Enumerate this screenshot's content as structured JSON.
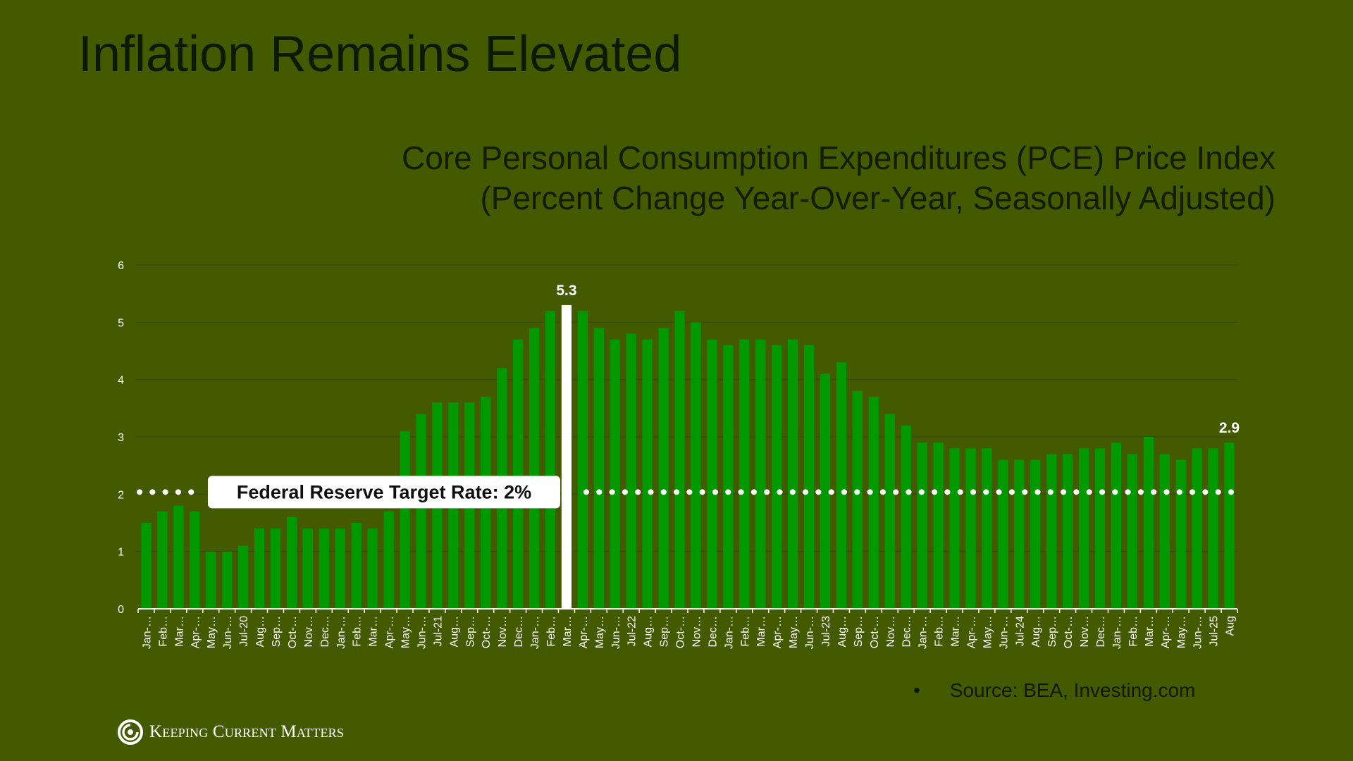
{
  "page": {
    "title": "Inflation Remains Elevated",
    "source_bullet": "•",
    "source_text": "Source: BEA, Investing.com",
    "logo_text": "Keeping Current Matters"
  },
  "chart_data": {
    "type": "bar",
    "title": "Core Personal Consumption Expenditures (PCE) Price Index",
    "subtitle": "(Percent Change Year-Over-Year, Seasonally Adjusted)",
    "xlabel": "",
    "ylabel": "",
    "ylim": [
      0,
      6
    ],
    "yticks": [
      0,
      1,
      2,
      3,
      4,
      5,
      6
    ],
    "grid": true,
    "categories": [
      "Jan-…",
      "Feb…",
      "Mar…",
      "Apr-…",
      "May…",
      "Jun-…",
      "Jul-20",
      "Aug…",
      "Sep…",
      "Oct-…",
      "Nov…",
      "Dec…",
      "Jan-…",
      "Feb…",
      "Mar…",
      "Apr-…",
      "May…",
      "Jun-…",
      "Jul-21",
      "Aug…",
      "Sep…",
      "Oct-…",
      "Nov…",
      "Dec…",
      "Jan-…",
      "Feb…",
      "Mar…",
      "Apr-…",
      "May…",
      "Jun-…",
      "Jul-22",
      "Aug…",
      "Sep…",
      "Oct-…",
      "Nov…",
      "Dec…",
      "Jan-…",
      "Feb…",
      "Mar…",
      "Apr-…",
      "May…",
      "Jun-…",
      "Jul-23",
      "Aug…",
      "Sep…",
      "Oct-…",
      "Nov…",
      "Dec…",
      "Jan-…",
      "Feb…",
      "Mar…",
      "Apr-…",
      "May…",
      "Jun-…",
      "Jul-24",
      "Aug…",
      "Sep…",
      "Oct-…",
      "Nov…",
      "Dec…",
      "Jan-…",
      "Feb…",
      "Mar…",
      "Apr-…",
      "May…",
      "Jun-…",
      "Jul-25",
      "Aug"
    ],
    "values": [
      1.5,
      1.7,
      1.8,
      1.7,
      1.0,
      1.0,
      1.1,
      1.4,
      1.4,
      1.6,
      1.4,
      1.4,
      1.4,
      1.5,
      1.4,
      1.7,
      3.1,
      3.4,
      3.6,
      3.6,
      3.6,
      3.7,
      4.2,
      4.7,
      4.9,
      5.2,
      5.3,
      5.2,
      4.9,
      4.7,
      4.8,
      4.7,
      4.9,
      5.2,
      5.0,
      4.7,
      4.6,
      4.7,
      4.7,
      4.6,
      4.7,
      4.6,
      4.1,
      4.3,
      3.8,
      3.7,
      3.4,
      3.2,
      2.9,
      2.9,
      2.8,
      2.8,
      2.8,
      2.6,
      2.6,
      2.6,
      2.7,
      2.7,
      2.8,
      2.8,
      2.9,
      2.7,
      3.0,
      2.7,
      2.6,
      2.8,
      2.8,
      2.9
    ],
    "highlight_index": 26,
    "data_labels": [
      {
        "index": 26,
        "text": "5.3"
      },
      {
        "index": 67,
        "text": "2.9"
      }
    ],
    "reference_line": {
      "value": 2,
      "label": "Federal Reserve Target Rate: 2%",
      "style": "dotted"
    },
    "colors": {
      "bar": "#009900",
      "highlight_bar": "#ffffff",
      "grid": "#3d4a10",
      "axis": "#ffffff",
      "tick_text": "#ffffff",
      "reference_dots": "#ffffff",
      "label_box": "#ffffff",
      "label_text": "#111111"
    }
  }
}
